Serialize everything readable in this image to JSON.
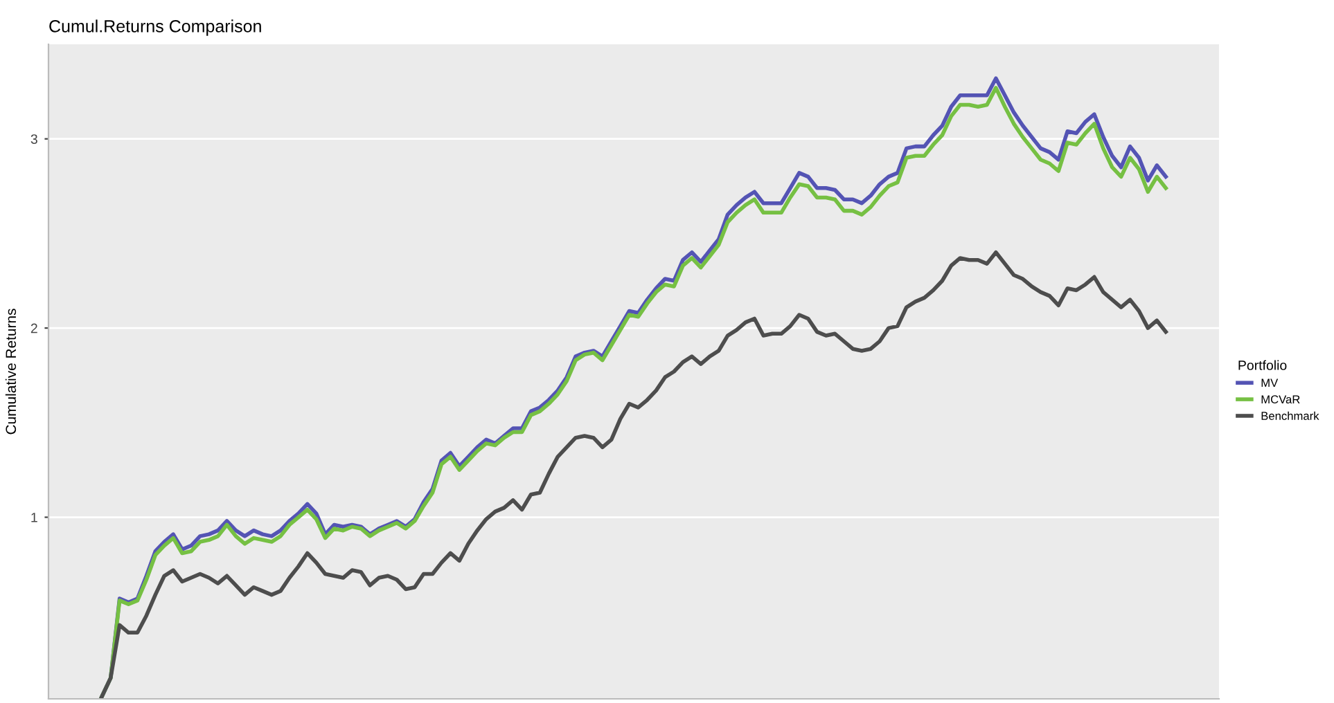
{
  "chart_data": {
    "type": "line",
    "title": "Cumul.Returns Comparison",
    "ylabel": "Cumulative Returns",
    "legend_title": "Portfolio",
    "categories": [
      null,
      null,
      null,
      null,
      null,
      null,
      null,
      null,
      null,
      null,
      null,
      null,
      null,
      null,
      null,
      null,
      null,
      null,
      null,
      null,
      null,
      null,
      null,
      null,
      null,
      null,
      null,
      null,
      null,
      null,
      null,
      null,
      null,
      null,
      null,
      null,
      null,
      null,
      null,
      null,
      null,
      null,
      null,
      null,
      null,
      null,
      null,
      null,
      null,
      null,
      null,
      null,
      null,
      null,
      null,
      null,
      null,
      null,
      null,
      null,
      null,
      null,
      null,
      null,
      null,
      null,
      null,
      null,
      null,
      null,
      null,
      null,
      null,
      null,
      null,
      null,
      null,
      null,
      null,
      null,
      null,
      null,
      null,
      null,
      null,
      null,
      null,
      null,
      null,
      null,
      null,
      null,
      null,
      null,
      null,
      null,
      null,
      null,
      null,
      null,
      null,
      null,
      null,
      null,
      null,
      null,
      null,
      null,
      null,
      null,
      null,
      null,
      null,
      null,
      null,
      null,
      null,
      null,
      null,
      null
    ],
    "series": [
      {
        "name": "MV",
        "color": "#5454b4",
        "values": [
          0.05,
          0.15,
          0.57,
          0.55,
          0.57,
          0.69,
          0.82,
          0.87,
          0.91,
          0.83,
          0.85,
          0.9,
          0.91,
          0.93,
          0.98,
          0.93,
          0.9,
          0.93,
          0.91,
          0.9,
          0.93,
          0.98,
          1.02,
          1.07,
          1.02,
          0.91,
          0.96,
          0.95,
          0.96,
          0.95,
          0.91,
          0.94,
          0.96,
          0.98,
          0.95,
          0.99,
          1.08,
          1.15,
          1.3,
          1.34,
          1.27,
          1.32,
          1.37,
          1.41,
          1.39,
          1.43,
          1.47,
          1.47,
          1.56,
          1.58,
          1.62,
          1.67,
          1.74,
          1.85,
          1.87,
          1.88,
          1.85,
          1.93,
          2.01,
          2.09,
          2.08,
          2.15,
          2.21,
          2.26,
          2.25,
          2.36,
          2.4,
          2.35,
          2.41,
          2.47,
          2.6,
          2.65,
          2.69,
          2.72,
          2.66,
          2.66,
          2.66,
          2.74,
          2.82,
          2.8,
          2.74,
          2.74,
          2.73,
          2.68,
          2.68,
          2.66,
          2.7,
          2.76,
          2.8,
          2.82,
          2.95,
          2.96,
          2.96,
          3.02,
          3.07,
          3.17,
          3.23,
          3.23,
          3.23,
          3.23,
          3.32,
          3.23,
          3.14,
          3.07,
          3.01,
          2.95,
          2.93,
          2.89,
          3.04,
          3.03,
          3.09,
          3.13,
          3.01,
          2.91,
          2.85,
          2.96,
          2.9,
          2.78,
          2.86,
          2.8
        ]
      },
      {
        "name": "MCVaR",
        "color": "#76c043",
        "values": [
          0.05,
          0.15,
          0.56,
          0.54,
          0.56,
          0.67,
          0.8,
          0.85,
          0.89,
          0.81,
          0.82,
          0.87,
          0.88,
          0.9,
          0.96,
          0.9,
          0.86,
          0.89,
          0.88,
          0.87,
          0.9,
          0.96,
          1.0,
          1.04,
          0.99,
          0.89,
          0.94,
          0.93,
          0.95,
          0.94,
          0.9,
          0.93,
          0.95,
          0.97,
          0.94,
          0.98,
          1.06,
          1.13,
          1.28,
          1.32,
          1.25,
          1.3,
          1.35,
          1.39,
          1.38,
          1.42,
          1.45,
          1.45,
          1.54,
          1.56,
          1.6,
          1.65,
          1.72,
          1.83,
          1.86,
          1.87,
          1.83,
          1.91,
          1.99,
          2.07,
          2.06,
          2.13,
          2.19,
          2.23,
          2.22,
          2.33,
          2.37,
          2.32,
          2.38,
          2.44,
          2.56,
          2.61,
          2.65,
          2.68,
          2.61,
          2.61,
          2.61,
          2.69,
          2.76,
          2.75,
          2.69,
          2.69,
          2.68,
          2.62,
          2.62,
          2.6,
          2.64,
          2.7,
          2.75,
          2.77,
          2.9,
          2.91,
          2.91,
          2.97,
          3.02,
          3.12,
          3.18,
          3.18,
          3.17,
          3.18,
          3.27,
          3.17,
          3.08,
          3.01,
          2.95,
          2.89,
          2.87,
          2.83,
          2.98,
          2.97,
          3.03,
          3.08,
          2.95,
          2.85,
          2.8,
          2.9,
          2.84,
          2.72,
          2.8,
          2.74
        ]
      },
      {
        "name": "Benchmark",
        "color": "#4d4d4d",
        "values": [
          0.05,
          0.15,
          0.43,
          0.39,
          0.39,
          0.48,
          0.59,
          0.69,
          0.72,
          0.66,
          0.68,
          0.7,
          0.68,
          0.65,
          0.69,
          0.64,
          0.59,
          0.63,
          0.61,
          0.59,
          0.61,
          0.68,
          0.74,
          0.81,
          0.76,
          0.7,
          0.69,
          0.68,
          0.72,
          0.71,
          0.64,
          0.68,
          0.69,
          0.67,
          0.62,
          0.63,
          0.7,
          0.7,
          0.76,
          0.81,
          0.77,
          0.86,
          0.93,
          0.99,
          1.03,
          1.05,
          1.09,
          1.04,
          1.12,
          1.13,
          1.23,
          1.32,
          1.37,
          1.42,
          1.43,
          1.42,
          1.37,
          1.41,
          1.52,
          1.6,
          1.58,
          1.62,
          1.67,
          1.74,
          1.77,
          1.82,
          1.85,
          1.81,
          1.85,
          1.88,
          1.96,
          1.99,
          2.03,
          2.05,
          1.96,
          1.97,
          1.97,
          2.01,
          2.07,
          2.05,
          1.98,
          1.96,
          1.97,
          1.93,
          1.89,
          1.88,
          1.89,
          1.93,
          2.0,
          2.01,
          2.11,
          2.14,
          2.16,
          2.2,
          2.25,
          2.33,
          2.37,
          2.36,
          2.36,
          2.34,
          2.4,
          2.34,
          2.28,
          2.26,
          2.22,
          2.19,
          2.17,
          2.12,
          2.21,
          2.2,
          2.23,
          2.27,
          2.19,
          2.15,
          2.11,
          2.15,
          2.09,
          2.0,
          2.04,
          1.98
        ]
      }
    ],
    "ylim": [
      0.04,
      3.5
    ],
    "yticks": [
      1,
      2,
      3
    ],
    "grid": "y",
    "legend": "right",
    "tick_labels": "y",
    "line_style": "solid"
  }
}
